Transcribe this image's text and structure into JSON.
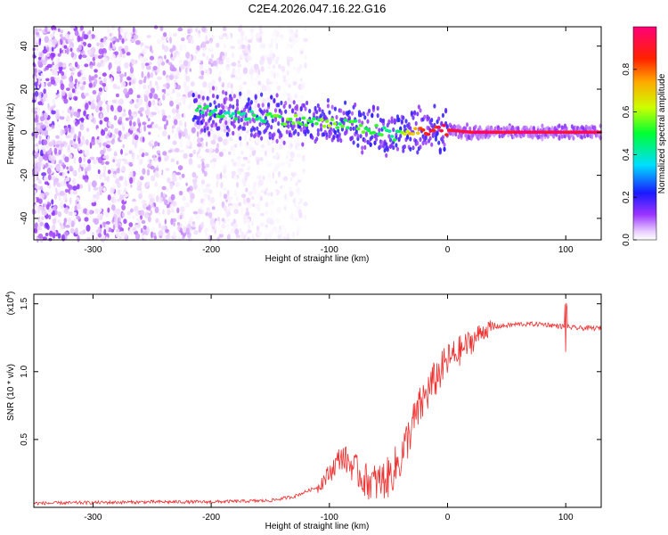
{
  "title": "C2E4.2026.047.16.22.G16",
  "chart_data": [
    {
      "type": "heatmap",
      "xlabel": "Height of straight line (km)",
      "ylabel": "Frequency (Hz)",
      "xlim": [
        -350,
        130
      ],
      "ylim": [
        -50,
        49
      ],
      "xticks": [
        -300,
        -200,
        -100,
        0,
        100
      ],
      "yticks": [
        -40,
        -20,
        0,
        20,
        40
      ],
      "ridge": {
        "x": [
          -210,
          -180,
          -150,
          -120,
          -100,
          -80,
          -60,
          -45,
          -30,
          -15,
          0,
          20,
          60,
          100,
          130
        ],
        "frequency": [
          10,
          8,
          7,
          5,
          4,
          3,
          1,
          -2,
          0,
          1,
          1,
          0,
          0,
          0,
          0
        ],
        "amplitude": [
          0.5,
          0.45,
          0.5,
          0.55,
          0.55,
          0.5,
          0.5,
          0.45,
          0.7,
          0.9,
          0.9,
          0.95,
          0.95,
          0.95,
          0.95
        ]
      },
      "noise_region_x": [
        -350,
        -150
      ],
      "colorbar": {
        "label": "Normalized spectral amplitude",
        "range": [
          0,
          1
        ],
        "ticks": [
          0.0,
          0.2,
          0.4,
          0.6,
          0.8
        ],
        "tick_labels": [
          "0.0",
          "0.2",
          "0.4",
          "0.6",
          "0.8"
        ]
      }
    },
    {
      "type": "line",
      "xlabel": "Height of straight line (km)",
      "ylabel": "SNR (10 * v/v)",
      "multiplier_label": "(x10",
      "multiplier_exponent": "4",
      "multiplier_close": ")",
      "xlim": [
        -350,
        130
      ],
      "ylim": [
        0,
        1.57
      ],
      "xticks": [
        -300,
        -200,
        -100,
        0,
        100
      ],
      "yticks": [
        0.5,
        1.0,
        1.5
      ],
      "ytick_labels": [
        "0.5",
        "1.0",
        "1.5"
      ],
      "series": [
        {
          "name": "SNR",
          "color": "#ee3030",
          "x": [
            -350,
            -300,
            -250,
            -200,
            -150,
            -130,
            -110,
            -100,
            -90,
            -80,
            -70,
            -60,
            -50,
            -40,
            -30,
            -20,
            -10,
            0,
            10,
            20,
            30,
            40,
            60,
            80,
            100,
            110,
            130
          ],
          "y": [
            0.03,
            0.035,
            0.04,
            0.04,
            0.05,
            0.08,
            0.15,
            0.25,
            0.38,
            0.3,
            0.2,
            0.18,
            0.22,
            0.35,
            0.6,
            0.8,
            0.95,
            1.08,
            1.15,
            1.22,
            1.3,
            1.33,
            1.35,
            1.35,
            1.33,
            1.32,
            1.32
          ]
        }
      ]
    }
  ],
  "colors": {
    "axis": "#000000",
    "line": "#ee3030"
  }
}
